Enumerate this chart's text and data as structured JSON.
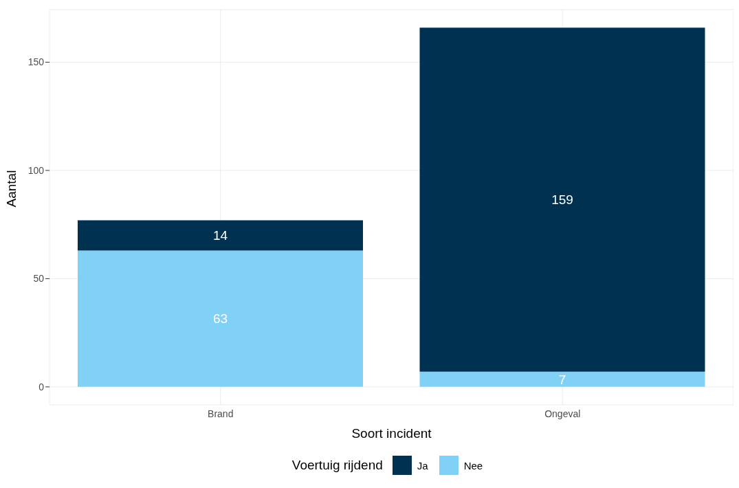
{
  "chart_data": {
    "type": "bar",
    "xlabel": "Soort incident",
    "ylabel": "Aantal",
    "legend_title": "Voertuig rijdend",
    "categories": [
      "Brand",
      "Ongeval"
    ],
    "stacked": true,
    "series": [
      {
        "name": "Nee",
        "color": "#81d0f5",
        "values": [
          63,
          7
        ]
      },
      {
        "name": "Ja",
        "color": "#003150",
        "values": [
          14,
          159
        ]
      }
    ],
    "ylim": [
      -8.3,
      174.3
    ],
    "yticks": [
      0,
      50,
      100,
      150
    ],
    "grid": true,
    "legend": "bottom",
    "data_labels": true
  }
}
